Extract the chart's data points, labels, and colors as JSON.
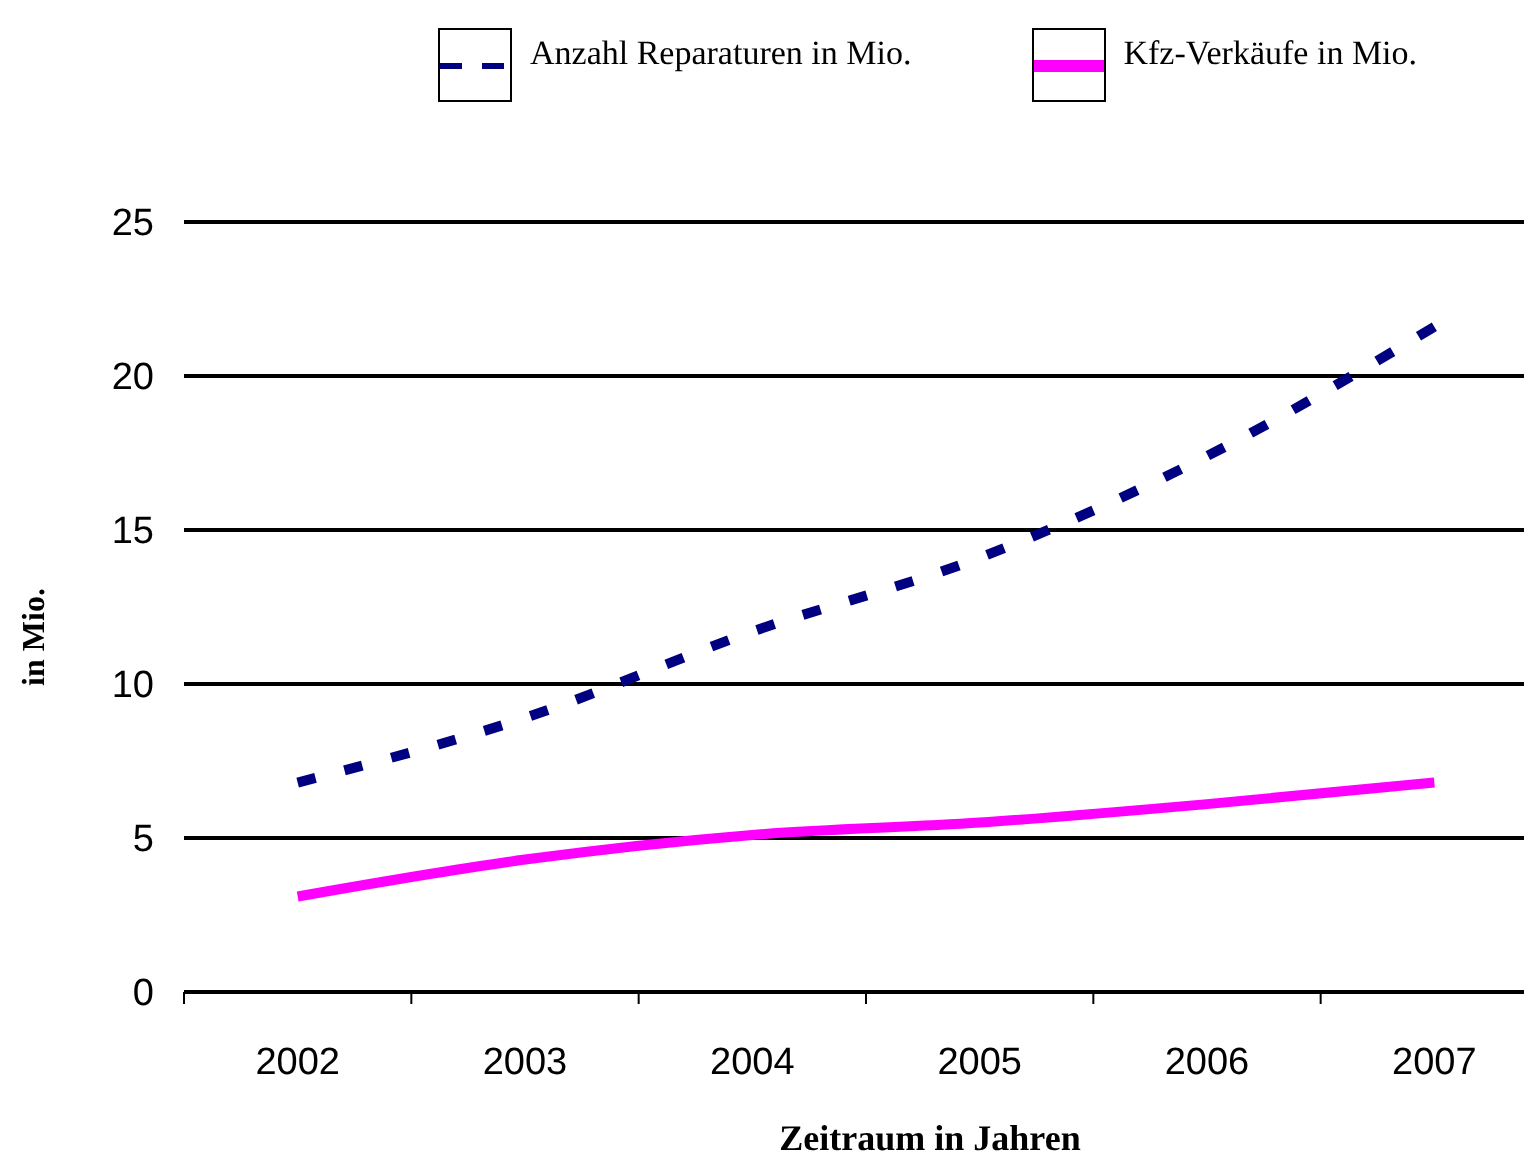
{
  "chart_data": {
    "type": "line",
    "xlabel": "Zeitraum in Jahren",
    "ylabel": "in Mio.",
    "categories": [
      "2002",
      "2003",
      "2004",
      "2005",
      "2006",
      "2007"
    ],
    "series": [
      {
        "name": "Anzahl Reparaturen in Mio.",
        "color": "#000080",
        "line_style": "dashed",
        "values": [
          6.8,
          8.9,
          11.7,
          14.1,
          17.4,
          21.6
        ]
      },
      {
        "name": "Kfz-Verkäufe in Mio.",
        "color": "#ff00ff",
        "line_style": "solid",
        "values": [
          3.1,
          4.3,
          5.1,
          5.5,
          6.1,
          6.8
        ]
      }
    ],
    "ylim": [
      0,
      25
    ],
    "yticks": [
      0,
      5,
      10,
      15,
      20,
      25
    ],
    "grid": "y",
    "legend": "top",
    "marker": "none"
  }
}
